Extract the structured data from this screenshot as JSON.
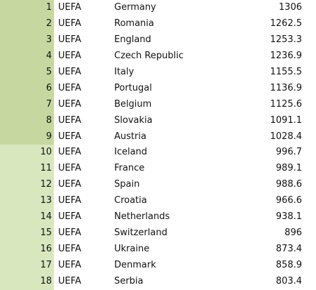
{
  "rows": [
    {
      "rank": "1",
      "conf": "UEFA",
      "country": "Germany",
      "points": "1306"
    },
    {
      "rank": "2",
      "conf": "UEFA",
      "country": "Romania",
      "points": "1262.5"
    },
    {
      "rank": "3",
      "conf": "UEFA",
      "country": "England",
      "points": "1253.3"
    },
    {
      "rank": "4",
      "conf": "UEFA",
      "country": "Czech Republic",
      "points": "1236.9"
    },
    {
      "rank": "5",
      "conf": "UEFA",
      "country": "Italy",
      "points": "1155.5"
    },
    {
      "rank": "6",
      "conf": "UEFA",
      "country": "Portugal",
      "points": "1136.9"
    },
    {
      "rank": "7",
      "conf": "UEFA",
      "country": "Belgium",
      "points": "1125.6"
    },
    {
      "rank": "8",
      "conf": "UEFA",
      "country": "Slovakia",
      "points": "1091.1"
    },
    {
      "rank": "9",
      "conf": "UEFA",
      "country": "Austria",
      "points": "1028.4"
    },
    {
      "rank": "10",
      "conf": "UEFA",
      "country": "Iceland",
      "points": "996.7"
    },
    {
      "rank": "11",
      "conf": "UEFA",
      "country": "France",
      "points": "989.1"
    },
    {
      "rank": "12",
      "conf": "UEFA",
      "country": "Spain",
      "points": "988.6"
    },
    {
      "rank": "13",
      "conf": "UEFA",
      "country": "Croatia",
      "points": "966.6"
    },
    {
      "rank": "14",
      "conf": "UEFA",
      "country": "Netherlands",
      "points": "938.1"
    },
    {
      "rank": "15",
      "conf": "UEFA",
      "country": "Switzerland",
      "points": "896"
    },
    {
      "rank": "16",
      "conf": "UEFA",
      "country": "Ukraine",
      "points": "873.4"
    },
    {
      "rank": "17",
      "conf": "UEFA",
      "country": "Denmark",
      "points": "858.9"
    },
    {
      "rank": "18",
      "conf": "UEFA",
      "country": "Serbia",
      "points": "803.4"
    }
  ],
  "colors": {
    "rank_top": "#c6d8a0",
    "rank_rest": "#d9e7bf"
  }
}
